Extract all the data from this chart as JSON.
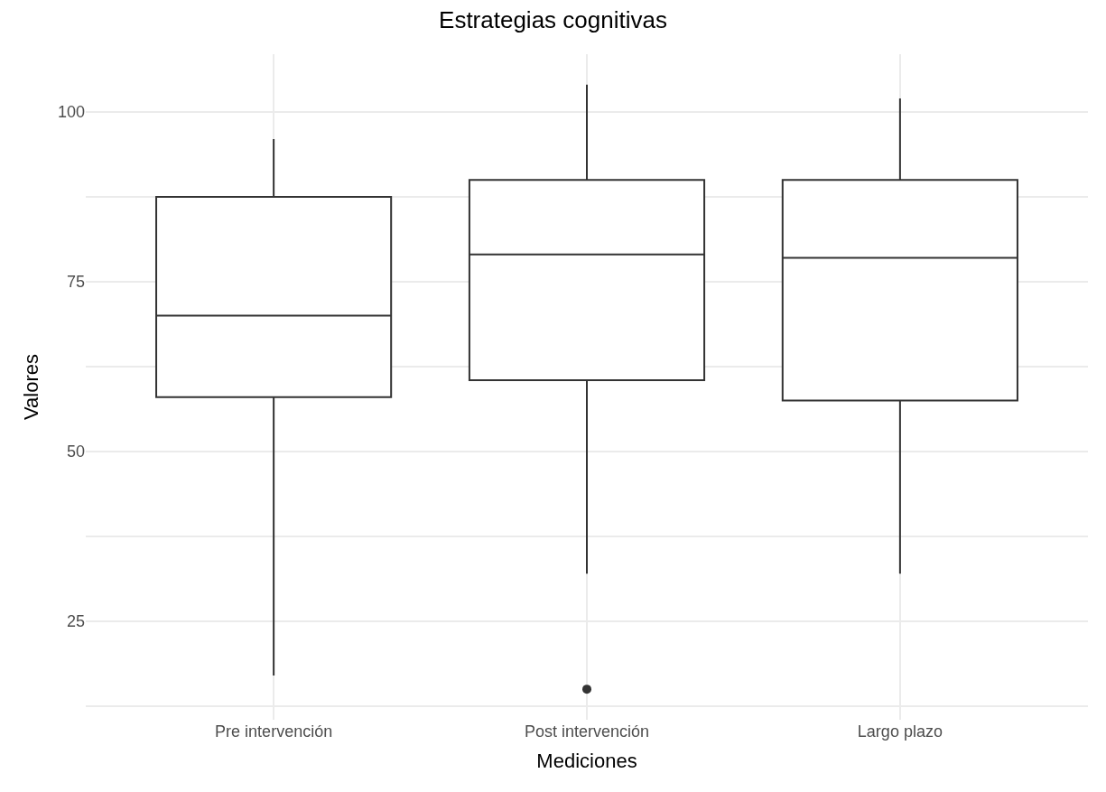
{
  "chart_data": {
    "type": "box",
    "title": "Estrategias cognitivas",
    "xlabel": "Mediciones",
    "ylabel": "Valores",
    "categories": [
      "Pre intervención",
      "Post intervención",
      "Largo plazo"
    ],
    "boxes": [
      {
        "low": 17,
        "q1": 58,
        "median": 70,
        "q3": 87.5,
        "high": 96
      },
      {
        "low": 32,
        "q1": 60.5,
        "median": 79,
        "q3": 90,
        "high": 104,
        "outliers": [
          15
        ]
      },
      {
        "low": 32,
        "q1": 57.5,
        "median": 78.5,
        "q3": 90,
        "high": 102
      }
    ],
    "color": "#333333",
    "ylim": [
      10.5,
      108.5
    ],
    "yticks": [
      {
        "value": 12.5,
        "label": null
      },
      25,
      {
        "value": 37.5,
        "label": null
      },
      50,
      {
        "value": 62.5,
        "label": null
      },
      75,
      {
        "value": 87.5,
        "label": null
      },
      100
    ],
    "grid": true
  }
}
